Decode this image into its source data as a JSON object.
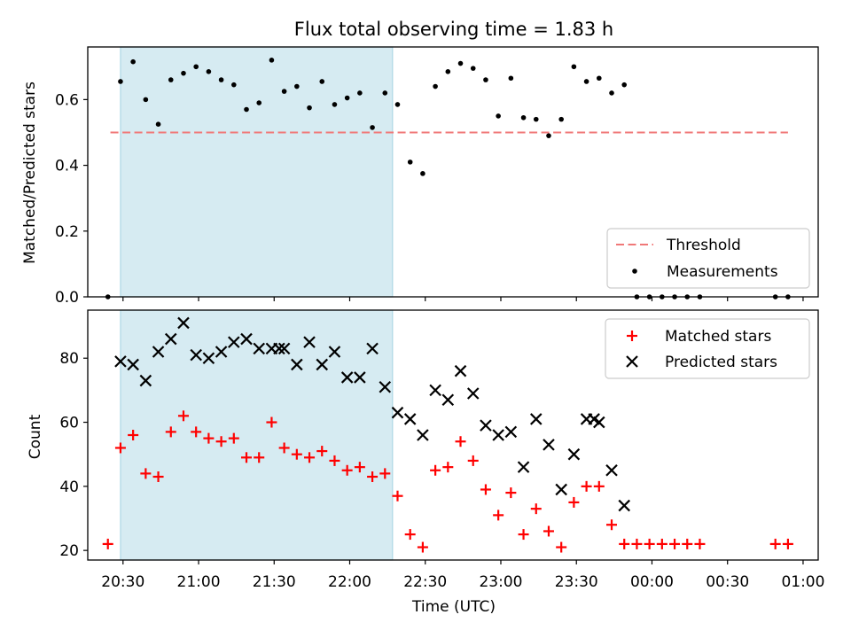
{
  "chart_data": [
    {
      "type": "scatter",
      "title": "Flux total observing time = 1.83 h",
      "xlabel": "",
      "ylabel": "Matched/Predicted stars",
      "ylim": [
        0,
        0.76
      ],
      "yticks": [
        "0.0",
        "0.2",
        "0.4",
        "0.6"
      ],
      "grid": false,
      "legend": "lower-right",
      "shaded_span": {
        "x_start": "20:29",
        "x_end": "22:17",
        "color": "#add8e6"
      },
      "threshold": {
        "name": "Threshold",
        "value": 0.5,
        "x_start": "20:25",
        "x_end": "00:54",
        "color": "#f07878"
      },
      "series": [
        {
          "name": "Measurements",
          "marker": "dot",
          "color": "#000000",
          "x": [
            "20:24",
            "20:29",
            "20:34",
            "20:39",
            "20:44",
            "20:49",
            "20:54",
            "20:59",
            "21:04",
            "21:09",
            "21:14",
            "21:19",
            "21:24",
            "21:29",
            "21:34",
            "21:39",
            "21:44",
            "21:49",
            "21:54",
            "21:59",
            "22:04",
            "22:09",
            "22:14",
            "22:19",
            "22:24",
            "22:29",
            "22:34",
            "22:39",
            "22:44",
            "22:49",
            "22:54",
            "22:59",
            "23:04",
            "23:09",
            "23:14",
            "23:19",
            "23:24",
            "23:29",
            "23:34",
            "23:39",
            "23:44",
            "23:49",
            "23:54",
            "23:59",
            "00:04",
            "00:09",
            "00:14",
            "00:19",
            "00:49",
            "00:54"
          ],
          "y": [
            0.0,
            0.655,
            0.715,
            0.6,
            0.525,
            0.66,
            0.68,
            0.7,
            0.685,
            0.66,
            0.645,
            0.57,
            0.59,
            0.72,
            0.625,
            0.64,
            0.575,
            0.655,
            0.585,
            0.605,
            0.62,
            0.515,
            0.62,
            0.585,
            0.41,
            0.375,
            0.64,
            0.685,
            0.71,
            0.695,
            0.66,
            0.55,
            0.665,
            0.545,
            0.54,
            0.49,
            0.54,
            0.7,
            0.655,
            0.665,
            0.62,
            0.645,
            0.0,
            0.0,
            0.0,
            0.0,
            0.0,
            0.0,
            0.0,
            0.0
          ]
        }
      ]
    },
    {
      "type": "scatter",
      "title": "",
      "xlabel": "Time (UTC)",
      "ylabel": "Count",
      "ylim": [
        17,
        95
      ],
      "yticks": [
        "20",
        "40",
        "60",
        "80"
      ],
      "xlim": [
        "20:16",
        "01:06"
      ],
      "xticks": [
        "20:30",
        "21:00",
        "21:30",
        "22:00",
        "22:30",
        "23:00",
        "23:30",
        "00:00",
        "00:30",
        "01:00"
      ],
      "grid": false,
      "legend": "upper-right",
      "shaded_span": {
        "x_start": "20:29",
        "x_end": "22:17",
        "color": "#add8e6"
      },
      "series": [
        {
          "name": "Matched stars",
          "marker": "plus",
          "color": "#ff0000",
          "x": [
            "20:24",
            "20:29",
            "20:34",
            "20:39",
            "20:44",
            "20:49",
            "20:54",
            "20:59",
            "21:04",
            "21:09",
            "21:14",
            "21:19",
            "21:24",
            "21:29",
            "21:34",
            "21:39",
            "21:44",
            "21:49",
            "21:54",
            "21:59",
            "22:04",
            "22:09",
            "22:14",
            "22:19",
            "22:24",
            "22:29",
            "22:34",
            "22:39",
            "22:44",
            "22:49",
            "22:54",
            "22:59",
            "23:04",
            "23:09",
            "23:14",
            "23:19",
            "23:24",
            "23:29",
            "23:34",
            "23:39",
            "23:44",
            "23:49",
            "23:54",
            "23:59",
            "00:04",
            "00:09",
            "00:14",
            "00:19",
            "00:49",
            "00:54"
          ],
          "y": [
            22,
            52,
            56,
            44,
            43,
            57,
            62,
            57,
            55,
            54,
            55,
            49,
            49,
            60,
            52,
            50,
            49,
            51,
            48,
            45,
            46,
            43,
            44,
            37,
            25,
            21,
            45,
            46,
            54,
            48,
            39,
            31,
            38,
            25,
            33,
            26,
            21,
            35,
            40,
            40,
            28,
            22,
            22,
            22,
            22,
            22,
            22,
            22,
            22,
            22
          ]
        },
        {
          "name": "Predicted stars",
          "marker": "x",
          "color": "#000000",
          "x": [
            "20:29",
            "20:34",
            "20:39",
            "20:44",
            "20:49",
            "20:54",
            "20:59",
            "21:04",
            "21:09",
            "21:14",
            "21:19",
            "21:24",
            "21:29",
            "21:32",
            "21:34",
            "21:39",
            "21:44",
            "21:49",
            "21:54",
            "21:59",
            "22:04",
            "22:09",
            "22:14",
            "22:19",
            "22:24",
            "22:29",
            "22:34",
            "22:39",
            "22:44",
            "22:49",
            "22:54",
            "22:59",
            "23:04",
            "23:09",
            "23:14",
            "23:19",
            "23:24",
            "23:29",
            "23:34",
            "23:37",
            "23:39",
            "23:44",
            "23:49"
          ],
          "y": [
            79,
            78,
            73,
            82,
            86,
            91,
            81,
            80,
            82,
            85,
            86,
            83,
            83,
            83,
            83,
            78,
            85,
            78,
            82,
            74,
            74,
            83,
            71,
            63,
            61,
            56,
            70,
            67,
            76,
            69,
            59,
            56,
            57,
            46,
            61,
            53,
            39,
            50,
            61,
            61,
            60,
            45,
            34
          ]
        }
      ]
    }
  ]
}
